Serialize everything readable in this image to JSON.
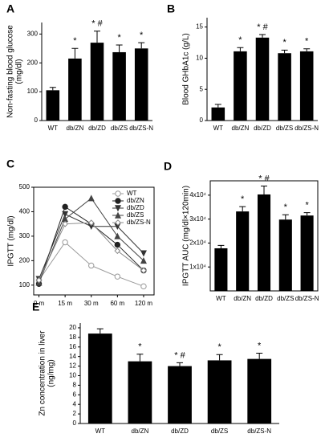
{
  "chart_data": [
    {
      "type": "bar",
      "panel": "A",
      "ylabel": "Non-fasting blood glucose\n(mg/dl)",
      "categories": [
        "WT",
        "db/ZN",
        "db/ZD",
        "db/ZS",
        "db/ZS-N"
      ],
      "values": [
        105,
        215,
        270,
        237,
        250
      ],
      "errors": [
        10,
        35,
        40,
        25,
        20
      ],
      "annotations": [
        null,
        "*",
        "* #",
        "*",
        "*"
      ],
      "ylim": [
        0,
        340
      ],
      "yticks": [
        0,
        100,
        200,
        300
      ],
      "color": "#000000",
      "frame": false
    },
    {
      "type": "bar",
      "panel": "B",
      "ylabel": "Blood  GHbA1c (g/L)",
      "categories": [
        "WT",
        "db/ZN",
        "db/ZD",
        "db/ZS",
        "db/ZS-N"
      ],
      "values": [
        2.1,
        11.1,
        13.3,
        10.8,
        11.1
      ],
      "errors": [
        0.5,
        0.6,
        0.5,
        0.5,
        0.4
      ],
      "annotations": [
        null,
        "*",
        "* #",
        "*",
        "*"
      ],
      "ylim": [
        0,
        16.5
      ],
      "yticks": [
        0,
        5,
        10,
        15
      ],
      "color": "#000000",
      "frame": false
    },
    {
      "type": "line",
      "panel": "C",
      "ylabel": "IPGTT  (mg/dl)",
      "categories": [
        "0 m",
        "15 m",
        "30 m",
        "60 m",
        "120 m"
      ],
      "series": [
        {
          "name": "WT",
          "color": "#999999",
          "marker": "open-circle",
          "values": [
            120,
            275,
            180,
            135,
            95
          ]
        },
        {
          "name": "db/ZN",
          "color": "#222222",
          "marker": "circle",
          "values": [
            105,
            420,
            350,
            265,
            160
          ]
        },
        {
          "name": "db/ZD",
          "color": "#333333",
          "marker": "triangle-down",
          "values": [
            125,
            390,
            340,
            340,
            230
          ]
        },
        {
          "name": "db/ZS",
          "color": "#444444",
          "marker": "triangle-up",
          "values": [
            110,
            370,
            455,
            300,
            200
          ]
        },
        {
          "name": "db/ZS-N",
          "color": "#888888",
          "marker": "open-diamond",
          "values": [
            120,
            350,
            355,
            240,
            160
          ]
        }
      ],
      "ylim": [
        60,
        500
      ],
      "yticks": [
        100,
        200,
        300,
        400,
        500
      ],
      "frame": true
    },
    {
      "type": "bar",
      "panel": "D",
      "ylabel": "IPGTT  AUC (mg/dl×120min)",
      "categories": [
        "WT",
        "db/ZN",
        "db/ZD",
        "db/ZS",
        "db/ZS-N"
      ],
      "values": [
        17800,
        33200,
        40300,
        29800,
        31500
      ],
      "errors": [
        1200,
        2000,
        3500,
        2000,
        1200
      ],
      "annotations": [
        null,
        "*",
        "* #",
        "*",
        "*"
      ],
      "ylim": [
        0,
        46000
      ],
      "yticks": [
        {
          "value": 10000,
          "label": "1x10⁴"
        },
        {
          "value": 20000,
          "label": "2x10⁴"
        },
        {
          "value": 30000,
          "label": "3x10⁴"
        },
        {
          "value": 40000,
          "label": "4x10⁴"
        }
      ],
      "color": "#000000",
      "frame": true
    },
    {
      "type": "bar",
      "panel": "E",
      "ylabel": "Zn  concentration  in  liver\n(ng/mg)",
      "categories": [
        "WT",
        "db/ZN",
        "db/ZD",
        "db/ZS",
        "db/ZS-N"
      ],
      "values": [
        18.8,
        13.0,
        12.0,
        13.2,
        13.5
      ],
      "errors": [
        1.0,
        1.5,
        0.7,
        1.2,
        1.2
      ],
      "annotations": [
        null,
        "*",
        "* #",
        "*",
        "*"
      ],
      "ylim": [
        0,
        21
      ],
      "yticks": [
        0,
        2,
        4,
        6,
        8,
        10,
        12,
        14,
        16,
        18,
        20
      ],
      "color": "#000000",
      "frame": false
    }
  ]
}
